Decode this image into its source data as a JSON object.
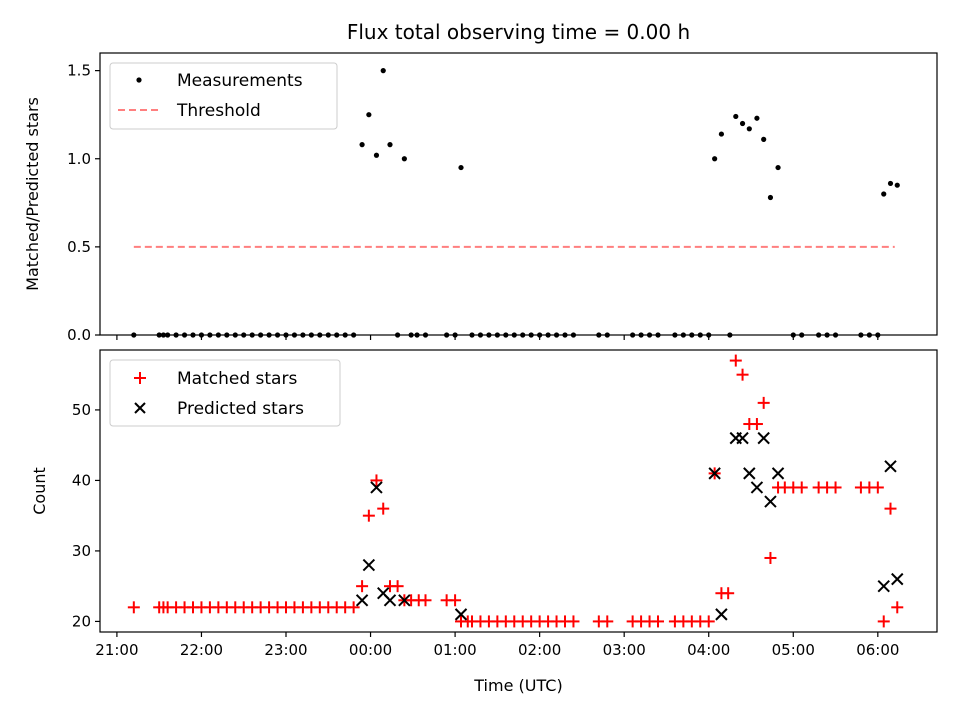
{
  "chart_data": [
    {
      "type": "scatter",
      "title": "Flux total observing time = 0.00 h",
      "xlabel": "",
      "ylabel": "Matched/Predicted stars",
      "xlim": [
        20.8,
        30.7
      ],
      "ylim": [
        0,
        1.6
      ],
      "yticks": [
        0.0,
        0.5,
        1.0,
        1.5
      ],
      "ytick_labels": [
        "0.0",
        "0.5",
        "1.0",
        "1.5"
      ],
      "xticks": [
        21,
        22,
        23,
        24,
        25,
        26,
        27,
        28,
        29,
        30
      ],
      "legend_position": "top-left",
      "colors": {
        "measurements": "#000000",
        "threshold": "#ff7f7f"
      },
      "series": [
        {
          "name": "Measurements",
          "kind": "points",
          "points": [
            [
              21.2,
              0
            ],
            [
              21.5,
              0
            ],
            [
              21.55,
              0
            ],
            [
              21.6,
              0
            ],
            [
              21.7,
              0
            ],
            [
              21.8,
              0
            ],
            [
              21.9,
              0
            ],
            [
              22.0,
              0
            ],
            [
              22.1,
              0
            ],
            [
              22.2,
              0
            ],
            [
              22.3,
              0
            ],
            [
              22.4,
              0
            ],
            [
              22.5,
              0
            ],
            [
              22.6,
              0
            ],
            [
              22.7,
              0
            ],
            [
              22.8,
              0
            ],
            [
              22.9,
              0
            ],
            [
              23.0,
              0
            ],
            [
              23.1,
              0
            ],
            [
              23.2,
              0
            ],
            [
              23.3,
              0
            ],
            [
              23.4,
              0
            ],
            [
              23.5,
              0
            ],
            [
              23.6,
              0
            ],
            [
              23.7,
              0
            ],
            [
              23.8,
              0
            ],
            [
              23.9,
              1.08
            ],
            [
              23.98,
              1.25
            ],
            [
              24.07,
              1.02
            ],
            [
              24.15,
              1.5
            ],
            [
              24.23,
              1.08
            ],
            [
              24.4,
              1.0
            ],
            [
              25.07,
              0.95
            ],
            [
              24.32,
              0
            ],
            [
              24.48,
              0
            ],
            [
              24.55,
              0
            ],
            [
              24.65,
              0
            ],
            [
              24.9,
              0
            ],
            [
              25.0,
              0
            ],
            [
              25.2,
              0
            ],
            [
              25.3,
              0
            ],
            [
              25.4,
              0
            ],
            [
              25.5,
              0
            ],
            [
              25.6,
              0
            ],
            [
              25.7,
              0
            ],
            [
              25.8,
              0
            ],
            [
              25.9,
              0
            ],
            [
              26.0,
              0
            ],
            [
              26.1,
              0
            ],
            [
              26.2,
              0
            ],
            [
              26.3,
              0
            ],
            [
              26.4,
              0
            ],
            [
              26.7,
              0
            ],
            [
              26.8,
              0
            ],
            [
              27.1,
              0
            ],
            [
              27.2,
              0
            ],
            [
              27.3,
              0
            ],
            [
              27.4,
              0
            ],
            [
              27.6,
              0
            ],
            [
              27.7,
              0
            ],
            [
              27.8,
              0
            ],
            [
              27.9,
              0
            ],
            [
              28.0,
              0
            ],
            [
              28.25,
              0
            ],
            [
              28.07,
              1.0
            ],
            [
              28.15,
              1.14
            ],
            [
              28.32,
              1.24
            ],
            [
              28.4,
              1.2
            ],
            [
              28.48,
              1.17
            ],
            [
              28.57,
              1.23
            ],
            [
              28.65,
              1.11
            ],
            [
              28.73,
              0.78
            ],
            [
              28.82,
              0.95
            ],
            [
              30.07,
              0.8
            ],
            [
              30.15,
              0.86
            ],
            [
              30.23,
              0.85
            ],
            [
              29.0,
              0
            ],
            [
              29.1,
              0
            ],
            [
              29.3,
              0
            ],
            [
              29.4,
              0
            ],
            [
              29.5,
              0
            ],
            [
              29.8,
              0
            ],
            [
              29.9,
              0
            ],
            [
              30.0,
              0
            ]
          ]
        },
        {
          "name": "Threshold",
          "kind": "dashed-line",
          "x": [
            21.2,
            30.2
          ],
          "y": [
            0.5,
            0.5
          ]
        }
      ]
    },
    {
      "type": "scatter",
      "title": "",
      "xlabel": "Time (UTC)",
      "ylabel": "Count",
      "xlim": [
        20.8,
        30.7
      ],
      "ylim": [
        18.5,
        58.5
      ],
      "yticks": [
        20,
        30,
        40,
        50
      ],
      "ytick_labels": [
        "20",
        "30",
        "40",
        "50"
      ],
      "xticks": [
        21,
        22,
        23,
        24,
        25,
        26,
        27,
        28,
        29,
        30
      ],
      "xtick_labels": [
        "21:00",
        "22:00",
        "23:00",
        "00:00",
        "01:00",
        "02:00",
        "03:00",
        "04:00",
        "05:00",
        "06:00"
      ],
      "legend_position": "top-left",
      "colors": {
        "matched": "#ff0000",
        "predicted": "#000000"
      },
      "series": [
        {
          "name": "Matched stars",
          "kind": "plus",
          "points": [
            [
              21.2,
              22
            ],
            [
              21.5,
              22
            ],
            [
              21.55,
              22
            ],
            [
              21.6,
              22
            ],
            [
              21.7,
              22
            ],
            [
              21.8,
              22
            ],
            [
              21.9,
              22
            ],
            [
              22.0,
              22
            ],
            [
              22.1,
              22
            ],
            [
              22.2,
              22
            ],
            [
              22.3,
              22
            ],
            [
              22.4,
              22
            ],
            [
              22.5,
              22
            ],
            [
              22.6,
              22
            ],
            [
              22.7,
              22
            ],
            [
              22.8,
              22
            ],
            [
              22.9,
              22
            ],
            [
              23.0,
              22
            ],
            [
              23.1,
              22
            ],
            [
              23.2,
              22
            ],
            [
              23.3,
              22
            ],
            [
              23.4,
              22
            ],
            [
              23.5,
              22
            ],
            [
              23.6,
              22
            ],
            [
              23.7,
              22
            ],
            [
              23.8,
              22
            ],
            [
              23.9,
              25
            ],
            [
              23.98,
              35
            ],
            [
              24.07,
              40
            ],
            [
              24.15,
              36
            ],
            [
              24.23,
              25
            ],
            [
              24.32,
              25
            ],
            [
              24.4,
              23
            ],
            [
              24.48,
              23
            ],
            [
              24.57,
              23
            ],
            [
              24.65,
              23
            ],
            [
              24.9,
              23
            ],
            [
              25.0,
              23
            ],
            [
              25.07,
              20
            ],
            [
              25.15,
              20
            ],
            [
              25.2,
              20
            ],
            [
              25.3,
              20
            ],
            [
              25.4,
              20
            ],
            [
              25.5,
              20
            ],
            [
              25.6,
              20
            ],
            [
              25.7,
              20
            ],
            [
              25.8,
              20
            ],
            [
              25.9,
              20
            ],
            [
              26.0,
              20
            ],
            [
              26.1,
              20
            ],
            [
              26.2,
              20
            ],
            [
              26.3,
              20
            ],
            [
              26.4,
              20
            ],
            [
              26.7,
              20
            ],
            [
              26.8,
              20
            ],
            [
              27.1,
              20
            ],
            [
              27.2,
              20
            ],
            [
              27.3,
              20
            ],
            [
              27.4,
              20
            ],
            [
              27.6,
              20
            ],
            [
              27.7,
              20
            ],
            [
              27.8,
              20
            ],
            [
              27.9,
              20
            ],
            [
              28.0,
              20
            ],
            [
              28.07,
              41
            ],
            [
              28.15,
              24
            ],
            [
              28.23,
              24
            ],
            [
              28.32,
              57
            ],
            [
              28.4,
              55
            ],
            [
              28.48,
              48
            ],
            [
              28.57,
              48
            ],
            [
              28.65,
              51
            ],
            [
              28.73,
              29
            ],
            [
              28.82,
              39
            ],
            [
              28.9,
              39
            ],
            [
              29.0,
              39
            ],
            [
              29.1,
              39
            ],
            [
              29.3,
              39
            ],
            [
              29.4,
              39
            ],
            [
              29.5,
              39
            ],
            [
              29.8,
              39
            ],
            [
              29.9,
              39
            ],
            [
              30.0,
              39
            ],
            [
              30.07,
              20
            ],
            [
              30.15,
              36
            ],
            [
              30.23,
              22
            ]
          ]
        },
        {
          "name": "Predicted stars",
          "kind": "x",
          "points": [
            [
              23.9,
              23
            ],
            [
              23.98,
              28
            ],
            [
              24.07,
              39
            ],
            [
              24.15,
              24
            ],
            [
              24.23,
              23
            ],
            [
              24.4,
              23
            ],
            [
              25.07,
              21
            ],
            [
              28.07,
              41
            ],
            [
              28.15,
              21
            ],
            [
              28.32,
              46
            ],
            [
              28.4,
              46
            ],
            [
              28.48,
              41
            ],
            [
              28.57,
              39
            ],
            [
              28.65,
              46
            ],
            [
              28.73,
              37
            ],
            [
              28.82,
              41
            ],
            [
              30.07,
              25
            ],
            [
              30.15,
              42
            ],
            [
              30.23,
              26
            ]
          ]
        }
      ]
    }
  ]
}
